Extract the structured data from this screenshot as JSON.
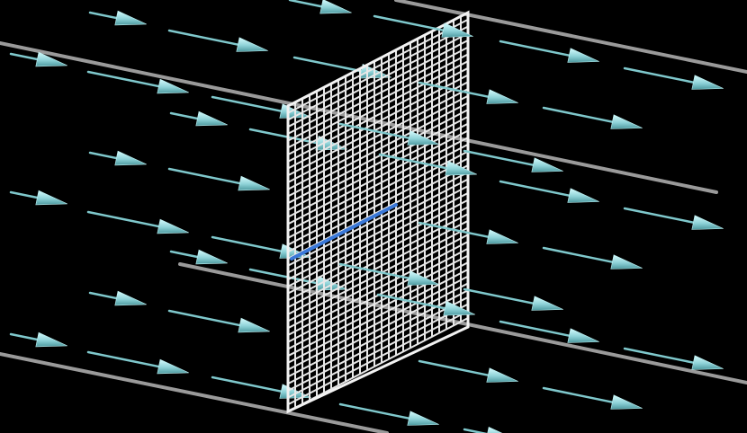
{
  "scene": {
    "description_visible_text": "",
    "colors": {
      "background": "#000000",
      "rail": "#9a9a9a",
      "arrow_shaft": "#7fc8cc",
      "arrow_head": "#a8e6ea",
      "grid_line": "#e8e8e8",
      "highlight_segment": "#3a78d8"
    },
    "elements": {
      "grid_panel": "wire-mesh-grid",
      "rails": 4,
      "field_arrows": "uniform-vector-field"
    }
  }
}
